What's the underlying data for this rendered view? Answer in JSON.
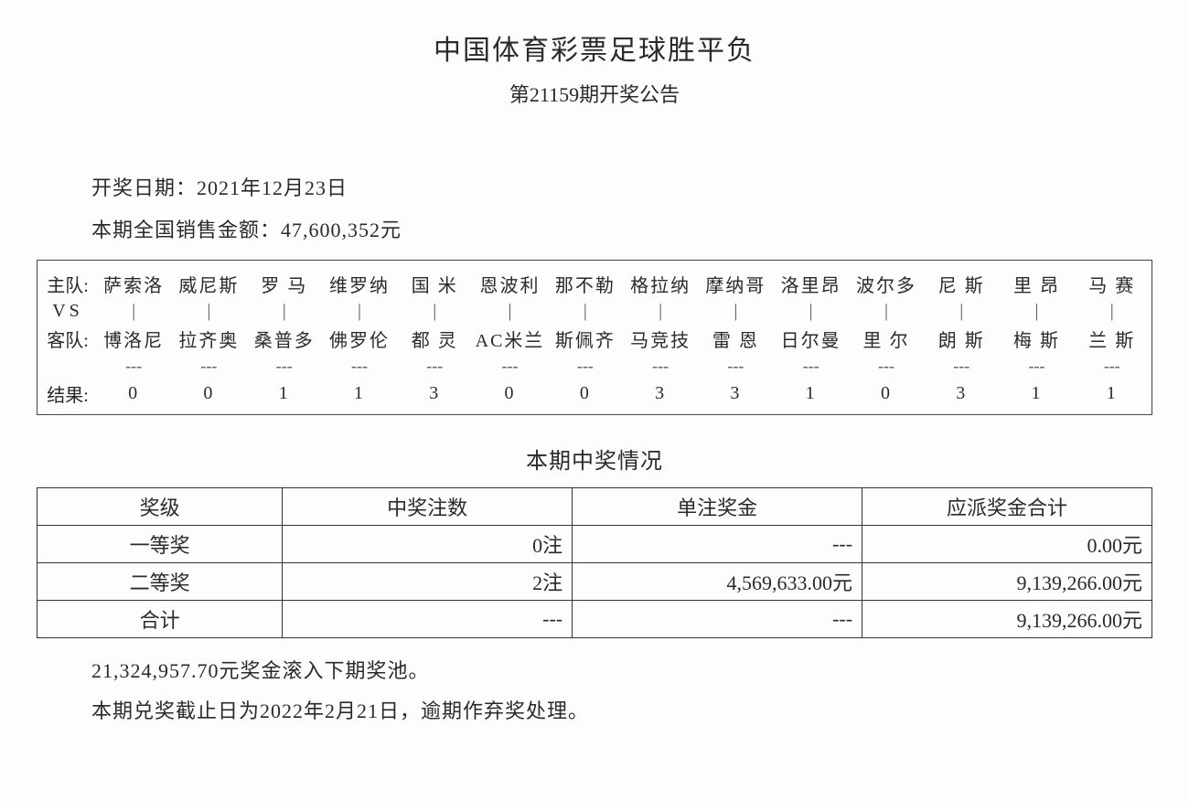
{
  "title": "中国体育彩票足球胜平负",
  "subtitle": "第21159期开奖公告",
  "date_line": "开奖日期：2021年12月23日",
  "sales_line": "本期全国销售金额：47,600,352元",
  "match": {
    "home_label": "主队:",
    "vs_label": "VS",
    "away_label": "客队:",
    "result_label": "结果:",
    "home": [
      "萨索洛",
      "威尼斯",
      "罗 马",
      "维罗纳",
      "国 米",
      "恩波利",
      "那不勒",
      "格拉纳",
      "摩纳哥",
      "洛里昂",
      "波尔多",
      "尼 斯",
      "里 昂",
      "马 赛"
    ],
    "vs_mark": "|",
    "away": [
      "博洛尼",
      "拉齐奥",
      "桑普多",
      "佛罗伦",
      "都 灵",
      "AC米兰",
      "斯佩齐",
      "马竞技",
      "雷 恩",
      "日尔曼",
      "里 尔",
      "朗 斯",
      "梅 斯",
      "兰 斯"
    ],
    "dash": "---",
    "result": [
      "0",
      "0",
      "1",
      "1",
      "3",
      "0",
      "0",
      "3",
      "3",
      "1",
      "0",
      "3",
      "1",
      "1"
    ]
  },
  "prize_section_title": "本期中奖情况",
  "prize_table": {
    "headers": [
      "奖级",
      "中奖注数",
      "单注奖金",
      "应派奖金合计"
    ],
    "rows": [
      {
        "level": "一等奖",
        "count": "0注",
        "unit": "---",
        "total": "0.00元"
      },
      {
        "level": "二等奖",
        "count": "2注",
        "unit": "4,569,633.00元",
        "total": "9,139,266.00元"
      },
      {
        "level": "合计",
        "count": "---",
        "unit": "---",
        "total": "9,139,266.00元"
      }
    ]
  },
  "rollover_line": "21,324,957.70元奖金滚入下期奖池。",
  "deadline_line": "本期兑奖截止日为2022年2月21日，逾期作弃奖处理。"
}
